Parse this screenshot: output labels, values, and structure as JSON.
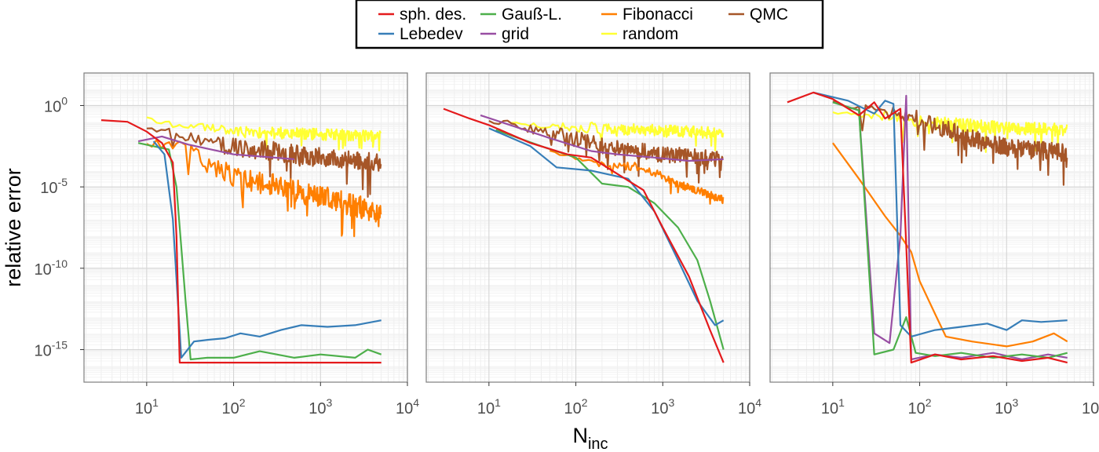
{
  "chart_data": {
    "type": "line",
    "xlabel": "N",
    "xlabel_sub": "inc",
    "ylabel": "relative error",
    "x_scale": "log",
    "y_scale": "log",
    "xlim": [
      1.9,
      10000
    ],
    "ylim": [
      1e-17,
      100.0
    ],
    "x_ticks": [
      {
        "value": 10,
        "base": "10",
        "exp": "1"
      },
      {
        "value": 100,
        "base": "10",
        "exp": "2"
      },
      {
        "value": 1000,
        "base": "10",
        "exp": "3"
      },
      {
        "value": 10000,
        "base": "10",
        "exp": "4"
      }
    ],
    "y_ticks": [
      {
        "value": 1,
        "base": "10",
        "exp": "0"
      },
      {
        "value": 1e-05,
        "base": "10",
        "exp": "-5"
      },
      {
        "value": 1e-10,
        "base": "10",
        "exp": "-10"
      },
      {
        "value": 1e-15,
        "base": "10",
        "exp": "-15"
      }
    ],
    "legend": {
      "placement": "top-center",
      "entries": [
        {
          "name": "sph. des.",
          "color": "#e41a1c"
        },
        {
          "name": "Lebedev",
          "color": "#377eb8"
        },
        {
          "name": "Gauß-L.",
          "color": "#4daf4a"
        },
        {
          "name": "grid",
          "color": "#984ea3"
        },
        {
          "name": "Fibonacci",
          "color": "#ff7f00"
        },
        {
          "name": "random",
          "color": "#ffff33"
        },
        {
          "name": "QMC",
          "color": "#a65628"
        }
      ]
    },
    "panels": [
      {
        "series": [
          {
            "name": "random",
            "kind": "noisy",
            "trend": [
              [
                10,
                -0.8
              ],
              [
                20,
                -1.2
              ],
              [
                100,
                -1.6
              ],
              [
                5000,
                -1.9
              ]
            ],
            "amp": 0.7,
            "seed": 11
          },
          {
            "name": "QMC",
            "kind": "noisy",
            "trend": [
              [
                10,
                -1.3
              ],
              [
                30,
                -1.9
              ],
              [
                100,
                -2.5
              ],
              [
                1000,
                -3.2
              ],
              [
                5000,
                -3.5
              ]
            ],
            "amp": 1.2,
            "seed": 12
          },
          {
            "name": "Fibonacci",
            "kind": "noisy",
            "trend": [
              [
                10,
                -2.3
              ],
              [
                30,
                -2.5
              ],
              [
                50,
                -3.7
              ],
              [
                100,
                -4.3
              ],
              [
                1000,
                -5.6
              ],
              [
                5000,
                -6.6
              ]
            ],
            "amp": 1.4,
            "seed": 13
          },
          {
            "name": "grid",
            "kind": "smooth",
            "pts": [
              [
                8,
                -2.2
              ],
              [
                15,
                -1.9
              ],
              [
                30,
                -2.4
              ],
              [
                100,
                -3.0
              ],
              [
                500,
                -3.3
              ]
            ]
          },
          {
            "name": "Gauß-L.",
            "kind": "smooth",
            "pts": [
              [
                8,
                -2.3
              ],
              [
                18,
                -2.7
              ],
              [
                22,
                -5
              ],
              [
                28,
                -12
              ],
              [
                32,
                -15.6
              ],
              [
                50,
                -15.5
              ],
              [
                100,
                -15.5
              ],
              [
                200,
                -15.1
              ],
              [
                500,
                -15.5
              ],
              [
                1000,
                -15.3
              ],
              [
                2500,
                -15.5
              ],
              [
                3500,
                -15.0
              ],
              [
                5000,
                -15.3
              ]
            ]
          },
          {
            "name": "Lebedev",
            "kind": "smooth",
            "pts": [
              [
                12,
                -2.2
              ],
              [
                16,
                -3.0
              ],
              [
                20,
                -7
              ],
              [
                25,
                -15.5
              ],
              [
                35,
                -14.5
              ],
              [
                50,
                -14.4
              ],
              [
                80,
                -14.3
              ],
              [
                120,
                -14.0
              ],
              [
                200,
                -14.2
              ],
              [
                350,
                -13.8
              ],
              [
                600,
                -13.5
              ],
              [
                1200,
                -13.6
              ],
              [
                2500,
                -13.5
              ],
              [
                5000,
                -13.2
              ]
            ]
          },
          {
            "name": "sph. des.",
            "kind": "smooth",
            "pts": [
              [
                3,
                -0.9
              ],
              [
                6,
                -1.0
              ],
              [
                10,
                -1.6
              ],
              [
                15,
                -2.3
              ],
              [
                20,
                -3.5
              ],
              [
                22,
                -8
              ],
              [
                24,
                -15.8
              ],
              [
                40,
                -15.8
              ],
              [
                5000,
                -15.8
              ]
            ]
          }
        ]
      },
      {
        "series": [
          {
            "name": "random",
            "kind": "noisy",
            "trend": [
              [
                18,
                -1.0
              ],
              [
                50,
                -1.3
              ],
              [
                200,
                -1.4
              ],
              [
                5000,
                -1.7
              ]
            ],
            "amp": 0.7,
            "seed": 21
          },
          {
            "name": "QMC",
            "kind": "noisy",
            "trend": [
              [
                10,
                -0.9
              ],
              [
                50,
                -1.6
              ],
              [
                200,
                -2.5
              ],
              [
                1000,
                -3.0
              ],
              [
                5000,
                -3.3
              ]
            ],
            "amp": 1.0,
            "seed": 22
          },
          {
            "name": "Fibonacci",
            "kind": "noisy",
            "trend": [
              [
                50,
                -2.8
              ],
              [
                200,
                -3.6
              ],
              [
                600,
                -3.8
              ],
              [
                1500,
                -4.8
              ],
              [
                5000,
                -5.8
              ]
            ],
            "amp": 0.5,
            "seed": 23
          },
          {
            "name": "grid",
            "kind": "smooth",
            "pts": [
              [
                8,
                -0.6
              ],
              [
                20,
                -1.3
              ],
              [
                50,
                -2.0
              ],
              [
                150,
                -2.8
              ],
              [
                300,
                -3.0
              ],
              [
                800,
                -3.2
              ],
              [
                2000,
                -3.4
              ],
              [
                5000,
                -3.3
              ]
            ]
          },
          {
            "name": "Gauß-L.",
            "kind": "smooth",
            "pts": [
              [
                12,
                -1.5
              ],
              [
                40,
                -2.5
              ],
              [
                100,
                -3.2
              ],
              [
                200,
                -4.8
              ],
              [
                400,
                -5.0
              ],
              [
                800,
                -6.0
              ],
              [
                1500,
                -7.5
              ],
              [
                2500,
                -9.5
              ],
              [
                3500,
                -12.0
              ],
              [
                5000,
                -15.0
              ]
            ]
          },
          {
            "name": "Lebedev",
            "kind": "smooth",
            "pts": [
              [
                10,
                -1.4
              ],
              [
                30,
                -2.5
              ],
              [
                60,
                -3.8
              ],
              [
                150,
                -4.0
              ],
              [
                400,
                -4.5
              ],
              [
                800,
                -6.5
              ],
              [
                1500,
                -9.5
              ],
              [
                2500,
                -12.0
              ],
              [
                4000,
                -13.5
              ],
              [
                5000,
                -13.2
              ]
            ]
          },
          {
            "name": "sph. des.",
            "kind": "smooth",
            "pts": [
              [
                3,
                -0.2
              ],
              [
                6,
                -0.8
              ],
              [
                10,
                -1.2
              ],
              [
                30,
                -2.3
              ],
              [
                80,
                -3.0
              ],
              [
                150,
                -3.2
              ],
              [
                300,
                -4.2
              ],
              [
                600,
                -5.2
              ],
              [
                1000,
                -7.5
              ],
              [
                2000,
                -10.5
              ],
              [
                3500,
                -13.8
              ],
              [
                5000,
                -15.8
              ]
            ]
          }
        ]
      },
      {
        "series": [
          {
            "name": "random",
            "kind": "noisy",
            "trend": [
              [
                10,
                -0.4
              ],
              [
                40,
                -0.6
              ],
              [
                100,
                -1.0
              ],
              [
                1000,
                -1.4
              ],
              [
                5000,
                -1.5
              ]
            ],
            "amp": 0.8,
            "seed": 31
          },
          {
            "name": "QMC",
            "kind": "noisy",
            "trend": [
              [
                10,
                0.2
              ],
              [
                30,
                -0.2
              ],
              [
                80,
                -0.7
              ],
              [
                300,
                -1.8
              ],
              [
                1000,
                -2.6
              ],
              [
                5000,
                -2.9
              ]
            ],
            "amp": 1.1,
            "seed": 32
          },
          {
            "name": "Fibonacci",
            "kind": "smooth",
            "pts": [
              [
                10,
                -2.3
              ],
              [
                20,
                -4.5
              ],
              [
                40,
                -6.8
              ],
              [
                60,
                -8.0
              ],
              [
                80,
                -9.0
              ],
              [
                100,
                -10.8
              ],
              [
                150,
                -12.8
              ],
              [
                200,
                -14.2
              ],
              [
                400,
                -14.5
              ],
              [
                1000,
                -14.8
              ],
              [
                2000,
                -14.5
              ],
              [
                3500,
                -14.0
              ],
              [
                5000,
                -14.5
              ]
            ]
          },
          {
            "name": "grid",
            "kind": "smooth",
            "pts": [
              [
                10,
                0.2
              ],
              [
                20,
                -0.3
              ],
              [
                30,
                -14.0
              ],
              [
                45,
                -14.6
              ],
              [
                60,
                -8
              ],
              [
                70,
                0.6
              ],
              [
                80,
                -15.6
              ],
              [
                150,
                -15.3
              ],
              [
                300,
                -15.5
              ],
              [
                700,
                -15.2
              ],
              [
                1500,
                -15.6
              ],
              [
                3000,
                -15.3
              ],
              [
                5000,
                -15.5
              ]
            ]
          },
          {
            "name": "Gauß-L.",
            "kind": "smooth",
            "pts": [
              [
                10,
                0.2
              ],
              [
                20,
                -0.3
              ],
              [
                30,
                -15.3
              ],
              [
                50,
                -15.0
              ],
              [
                70,
                -13.0
              ],
              [
                90,
                -15.2
              ],
              [
                150,
                -15.4
              ],
              [
                300,
                -15.2
              ],
              [
                700,
                -15.5
              ],
              [
                1500,
                -15.3
              ],
              [
                3000,
                -15.5
              ],
              [
                5000,
                -15.2
              ]
            ]
          },
          {
            "name": "Lebedev",
            "kind": "smooth",
            "pts": [
              [
                6,
                0.8
              ],
              [
                15,
                0.3
              ],
              [
                30,
                -0.5
              ],
              [
                40,
                0.3
              ],
              [
                50,
                0.1
              ],
              [
                60,
                -13.5
              ],
              [
                80,
                -14.2
              ],
              [
                150,
                -13.8
              ],
              [
                300,
                -13.6
              ],
              [
                600,
                -13.4
              ],
              [
                1000,
                -13.8
              ],
              [
                1500,
                -13.2
              ],
              [
                2500,
                -13.3
              ],
              [
                5000,
                -13.2
              ]
            ]
          },
          {
            "name": "sph. des.",
            "kind": "smooth",
            "pts": [
              [
                3,
                0.2
              ],
              [
                6,
                0.8
              ],
              [
                10,
                0.4
              ],
              [
                20,
                -0.6
              ],
              [
                30,
                0.2
              ],
              [
                40,
                -0.8
              ],
              [
                60,
                -0.2
              ],
              [
                80,
                -15.8
              ],
              [
                150,
                -15.3
              ],
              [
                300,
                -15.6
              ],
              [
                700,
                -15.4
              ],
              [
                1500,
                -15.7
              ],
              [
                3000,
                -15.5
              ],
              [
                5000,
                -15.8
              ]
            ]
          }
        ]
      }
    ]
  }
}
